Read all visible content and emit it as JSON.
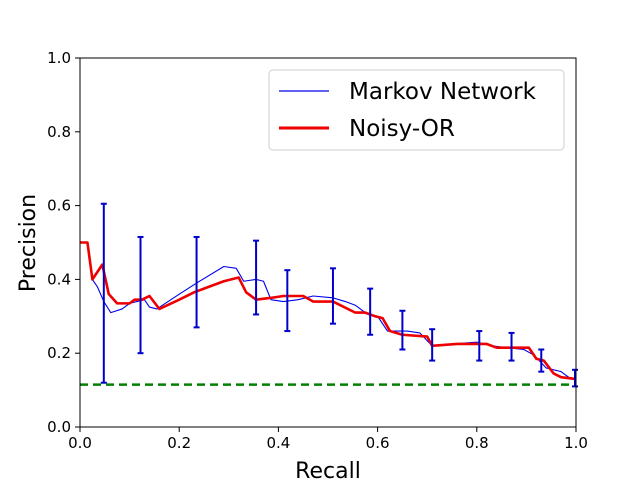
{
  "chart_data": {
    "type": "line",
    "xlabel": "Recall",
    "ylabel": "Precision",
    "xlim": [
      0.0,
      1.0
    ],
    "ylim": [
      0.0,
      1.0
    ],
    "grid": false,
    "legend_position": "top-right",
    "xticks": [
      "0.0",
      "0.2",
      "0.4",
      "0.6",
      "0.8",
      "1.0"
    ],
    "yticks": [
      "0.0",
      "0.2",
      "0.4",
      "0.6",
      "0.8",
      "1.0"
    ],
    "series": [
      {
        "name": "Markov Network",
        "color": "#0000ee",
        "style": "thin",
        "points": [
          [
            0.0,
            0.5
          ],
          [
            0.015,
            0.5
          ],
          [
            0.025,
            0.4
          ],
          [
            0.035,
            0.38
          ],
          [
            0.048,
            0.34
          ],
          [
            0.062,
            0.31
          ],
          [
            0.085,
            0.32
          ],
          [
            0.1,
            0.335
          ],
          [
            0.13,
            0.345
          ],
          [
            0.14,
            0.325
          ],
          [
            0.155,
            0.32
          ],
          [
            0.2,
            0.36
          ],
          [
            0.235,
            0.39
          ],
          [
            0.29,
            0.435
          ],
          [
            0.315,
            0.43
          ],
          [
            0.33,
            0.395
          ],
          [
            0.355,
            0.4
          ],
          [
            0.37,
            0.395
          ],
          [
            0.385,
            0.345
          ],
          [
            0.41,
            0.34
          ],
          [
            0.44,
            0.345
          ],
          [
            0.47,
            0.355
          ],
          [
            0.51,
            0.35
          ],
          [
            0.535,
            0.34
          ],
          [
            0.555,
            0.33
          ],
          [
            0.575,
            0.31
          ],
          [
            0.6,
            0.3
          ],
          [
            0.62,
            0.26
          ],
          [
            0.64,
            0.26
          ],
          [
            0.66,
            0.26
          ],
          [
            0.685,
            0.255
          ],
          [
            0.71,
            0.22
          ],
          [
            0.75,
            0.225
          ],
          [
            0.8,
            0.23
          ],
          [
            0.83,
            0.22
          ],
          [
            0.86,
            0.215
          ],
          [
            0.895,
            0.21
          ],
          [
            0.915,
            0.195
          ],
          [
            0.94,
            0.16
          ],
          [
            0.97,
            0.15
          ],
          [
            0.985,
            0.135
          ],
          [
            1.0,
            0.13
          ]
        ]
      },
      {
        "name": "Noisy-OR",
        "color": "#ee0000",
        "style": "thick",
        "points": [
          [
            0.0,
            0.5
          ],
          [
            0.015,
            0.5
          ],
          [
            0.025,
            0.4
          ],
          [
            0.045,
            0.44
          ],
          [
            0.058,
            0.36
          ],
          [
            0.075,
            0.335
          ],
          [
            0.1,
            0.335
          ],
          [
            0.11,
            0.345
          ],
          [
            0.125,
            0.345
          ],
          [
            0.14,
            0.355
          ],
          [
            0.16,
            0.32
          ],
          [
            0.2,
            0.345
          ],
          [
            0.23,
            0.365
          ],
          [
            0.26,
            0.38
          ],
          [
            0.29,
            0.395
          ],
          [
            0.32,
            0.405
          ],
          [
            0.335,
            0.365
          ],
          [
            0.355,
            0.345
          ],
          [
            0.385,
            0.35
          ],
          [
            0.41,
            0.355
          ],
          [
            0.45,
            0.355
          ],
          [
            0.47,
            0.34
          ],
          [
            0.49,
            0.34
          ],
          [
            0.51,
            0.34
          ],
          [
            0.555,
            0.31
          ],
          [
            0.575,
            0.31
          ],
          [
            0.595,
            0.3
          ],
          [
            0.61,
            0.295
          ],
          [
            0.625,
            0.26
          ],
          [
            0.65,
            0.25
          ],
          [
            0.7,
            0.245
          ],
          [
            0.71,
            0.22
          ],
          [
            0.76,
            0.225
          ],
          [
            0.82,
            0.225
          ],
          [
            0.84,
            0.215
          ],
          [
            0.875,
            0.215
          ],
          [
            0.905,
            0.215
          ],
          [
            0.92,
            0.185
          ],
          [
            0.935,
            0.18
          ],
          [
            0.955,
            0.145
          ],
          [
            0.97,
            0.135
          ],
          [
            1.0,
            0.13
          ]
        ]
      }
    ],
    "error_bars": {
      "color": "#0000cc",
      "bars": [
        {
          "x": 0.048,
          "low": 0.12,
          "high": 0.605
        },
        {
          "x": 0.122,
          "low": 0.2,
          "high": 0.515
        },
        {
          "x": 0.235,
          "low": 0.27,
          "high": 0.515
        },
        {
          "x": 0.355,
          "low": 0.305,
          "high": 0.505
        },
        {
          "x": 0.418,
          "low": 0.26,
          "high": 0.425
        },
        {
          "x": 0.51,
          "low": 0.28,
          "high": 0.43
        },
        {
          "x": 0.585,
          "low": 0.25,
          "high": 0.375
        },
        {
          "x": 0.65,
          "low": 0.21,
          "high": 0.315
        },
        {
          "x": 0.71,
          "low": 0.18,
          "high": 0.265
        },
        {
          "x": 0.805,
          "low": 0.18,
          "high": 0.26
        },
        {
          "x": 0.87,
          "low": 0.18,
          "high": 0.255
        },
        {
          "x": 0.93,
          "low": 0.15,
          "high": 0.21
        },
        {
          "x": 0.998,
          "low": 0.11,
          "high": 0.155
        }
      ]
    },
    "baseline": {
      "y": 0.115,
      "color": "#008000",
      "style": "dashed"
    }
  }
}
